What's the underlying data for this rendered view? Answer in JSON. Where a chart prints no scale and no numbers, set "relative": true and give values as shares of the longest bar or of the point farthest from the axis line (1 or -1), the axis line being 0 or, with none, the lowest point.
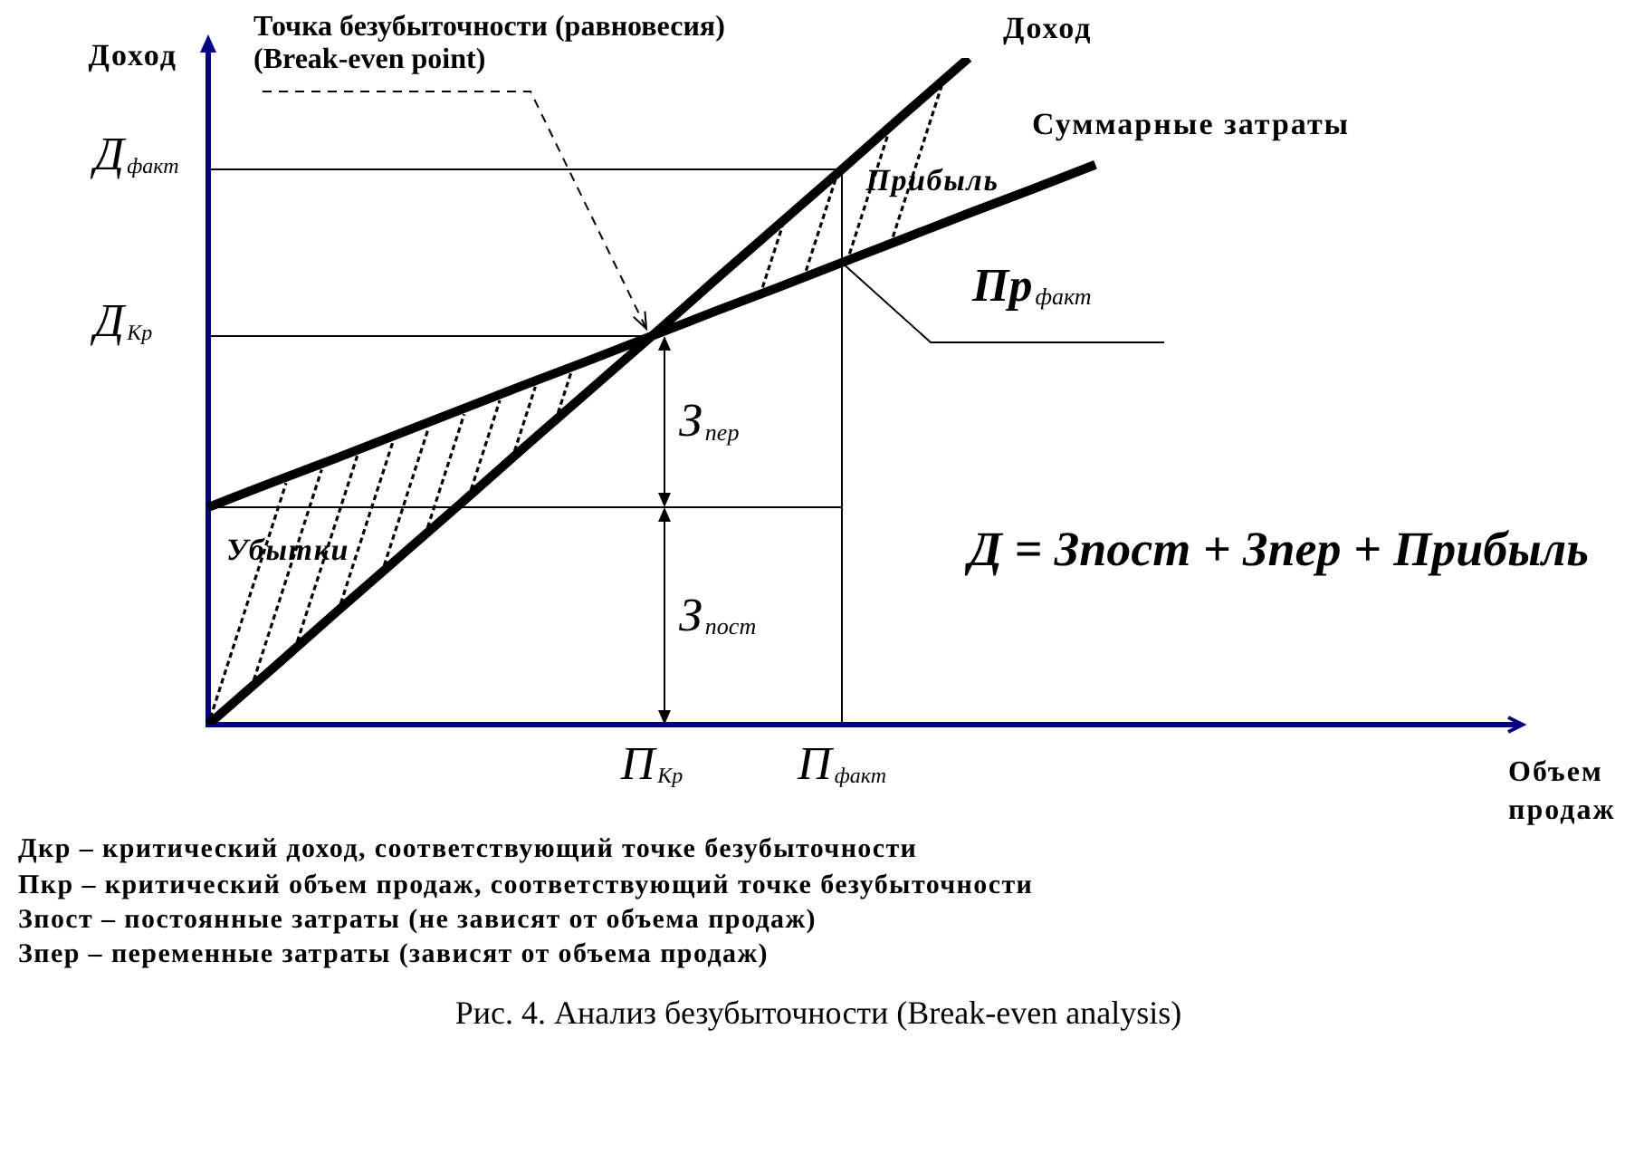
{
  "chart_data": {
    "type": "line",
    "relative": true,
    "xlabel": "Объем продаж",
    "ylabel": "Доход",
    "categories": [
      null,
      null,
      null,
      null,
      null,
      null,
      null,
      "П$_{Кр}$",
      null,
      null,
      "П$_{факт}$",
      null,
      null,
      null,
      null,
      null,
      null,
      null,
      null,
      null,
      null
    ],
    "series": [
      {
        "name": "Доход",
        "color": "#000000",
        "values": [
          0,
          0.083,
          0.167,
          0.25,
          0.333,
          0.417,
          0.5,
          0.583,
          0.667,
          0.75,
          0.833,
          0.917,
          1,
          null,
          null,
          null,
          null,
          null,
          null,
          null,
          null
        ]
      },
      {
        "name": "Суммарные затраты",
        "color": "#000000",
        "values": [
          0.326,
          0.363,
          0.399,
          0.436,
          0.473,
          0.51,
          0.546,
          0.583,
          0.62,
          0.656,
          0.693,
          0.73,
          0.767,
          0.803,
          0.84,
          null,
          null,
          null,
          null,
          null,
          null
        ]
      },
      {
        "color": "#000000",
        "values": [
          0.326,
          0.326,
          0.326,
          0.326,
          0.326,
          0.326,
          0.326,
          0.326,
          0.326,
          0.326,
          0.326,
          null,
          null,
          null,
          null,
          null,
          null,
          null,
          null,
          null,
          null
        ]
      }
    ],
    "ref_lines": [
      {
        "axis": "y",
        "value": 0.833,
        "label": "Д$_{факт}$"
      },
      {
        "axis": "y",
        "value": 0.583,
        "label": "Д$_{Кр}$"
      },
      {
        "axis": "x",
        "value": "П$_{факт}$"
      }
    ],
    "annotations": [
      {
        "text": "Точка безубыточности (равновесия) (Break-even point)",
        "x": "П$_{Кр}$",
        "y": 0.583
      },
      {
        "text": "Пр$_{факт}$",
        "x": "П$_{факт}$",
        "y": 0.693
      },
      "З$_{пер}$",
      "З$_{пост}$",
      "Убытки",
      "Прибыль",
      "Д = Зпост + Зпер + Прибыль",
      "Дкр – критический доход, соответствующий точке безубыточности",
      "Пкр – критический объем продаж, соответствующий точке безубыточности",
      "Зпост – постоянные затраты (не зависят от объема продаж)",
      "Зпер – переменные затраты (зависят от объема продаж)",
      "Рис. 4. Анализ безубыточности (Break-even analysis)"
    ]
  }
}
